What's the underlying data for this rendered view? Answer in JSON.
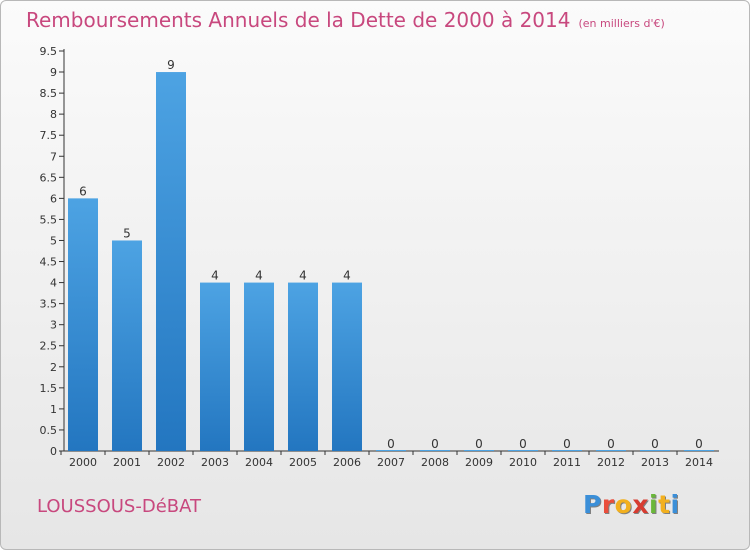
{
  "chart_data": {
    "type": "bar",
    "title": "Remboursements Annuels de la Dette de 2000 à 2014",
    "unit_note": "(en milliers d'€)",
    "categories": [
      "2000",
      "2001",
      "2002",
      "2003",
      "2004",
      "2005",
      "2006",
      "2007",
      "2008",
      "2009",
      "2010",
      "2011",
      "2012",
      "2013",
      "2014"
    ],
    "values": [
      6,
      5,
      9,
      4,
      4,
      4,
      4,
      0,
      0,
      0,
      0,
      0,
      0,
      0,
      0
    ],
    "data_labels": [
      "6",
      "5",
      "9",
      "4",
      "4",
      "4",
      "4",
      "0",
      "0",
      "0",
      "0",
      "0",
      "0",
      "0",
      "0"
    ],
    "y_ticks": [
      "0",
      "0.5",
      "1",
      "1.5",
      "2",
      "2.5",
      "3",
      "3.5",
      "4",
      "4.5",
      "5",
      "5.5",
      "6",
      "6.5",
      "7",
      "7.5",
      "8",
      "8.5",
      "9",
      "9.5"
    ],
    "ylim": [
      0,
      9.5
    ],
    "grid": false,
    "bar_color": "#4da3e3",
    "bar_color_dark": "#2376c0",
    "title_color": "#c8487e"
  },
  "footer": {
    "commune": "LOUSSOUS-DéBAT",
    "logo": {
      "p": "P",
      "r": "r",
      "o": "o",
      "x": "x",
      "i": "i",
      "t": "t",
      "i2": "i"
    }
  }
}
